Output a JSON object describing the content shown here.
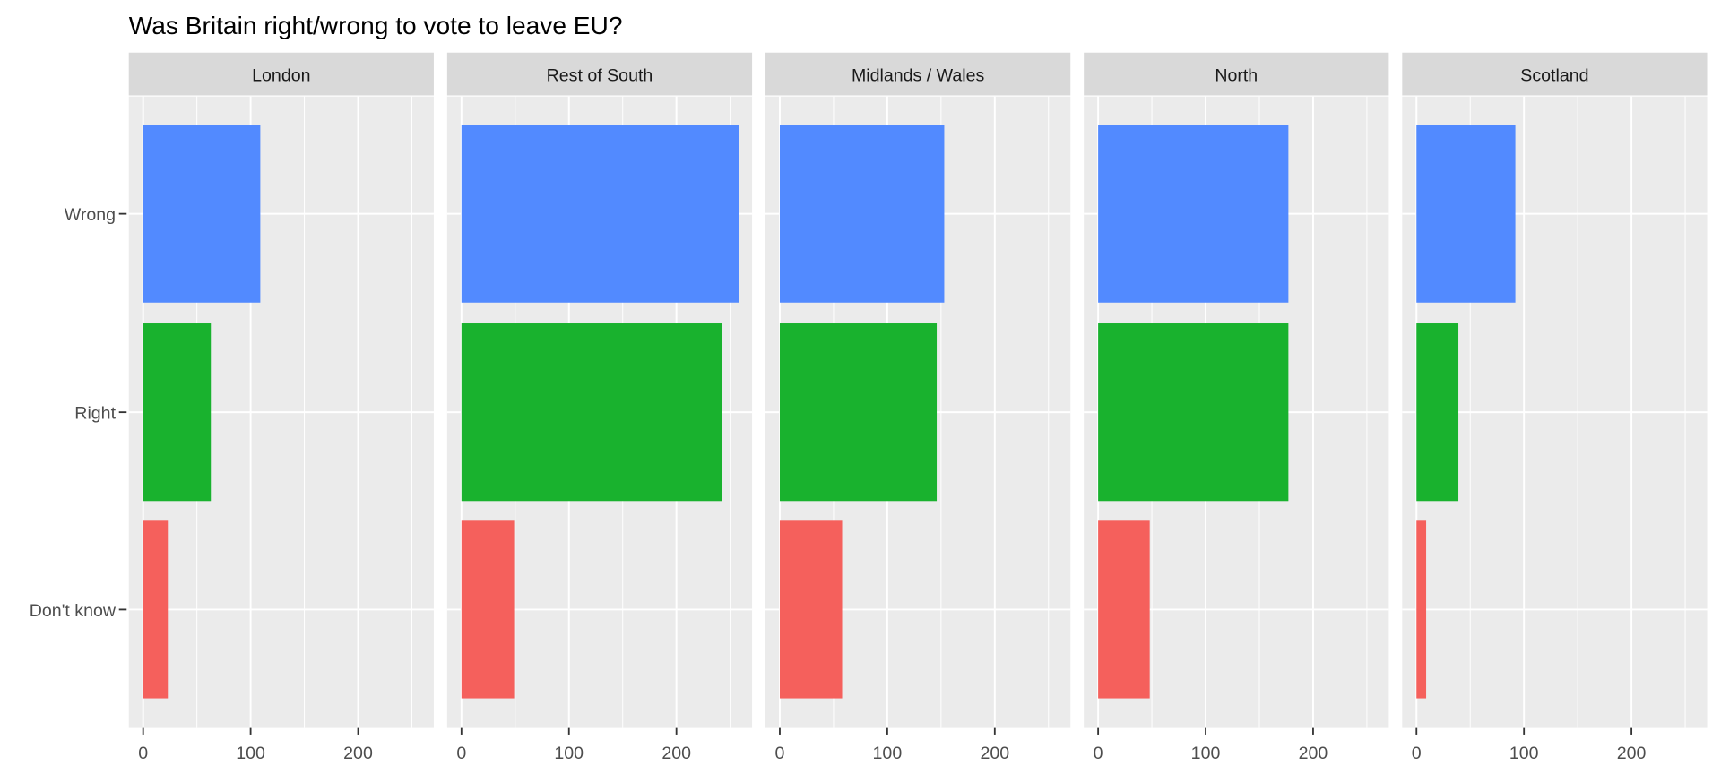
{
  "chart_data": {
    "type": "bar",
    "orientation": "horizontal",
    "title": "Was Britain right/wrong to vote to leave EU?",
    "xlabel": "",
    "ylabel": "",
    "categories": [
      "Wrong",
      "Right",
      "Don't know"
    ],
    "category_colors": {
      "Wrong": "#528AFF",
      "Right": "#19B22E",
      "Don't know": "#F5605C"
    },
    "xlim": [
      -13.3,
      270.4
    ],
    "x_ticks": [
      0,
      100,
      200
    ],
    "x_tick_labels": [
      "0",
      "100",
      "200"
    ],
    "x_minor_ticks": [
      50,
      150,
      250
    ],
    "grid": true,
    "legend": "none",
    "facets": [
      {
        "name": "London",
        "values": {
          "Wrong": 109,
          "Right": 63,
          "Don't know": 23
        }
      },
      {
        "name": "Rest of South",
        "values": {
          "Wrong": 258,
          "Right": 242,
          "Don't know": 49
        }
      },
      {
        "name": "Midlands / Wales",
        "values": {
          "Wrong": 153,
          "Right": 146,
          "Don't know": 58
        }
      },
      {
        "name": "North",
        "values": {
          "Wrong": 177,
          "Right": 177,
          "Don't know": 48
        }
      },
      {
        "name": "Scotland",
        "values": {
          "Wrong": 92,
          "Right": 39,
          "Don't know": 9
        }
      }
    ]
  }
}
